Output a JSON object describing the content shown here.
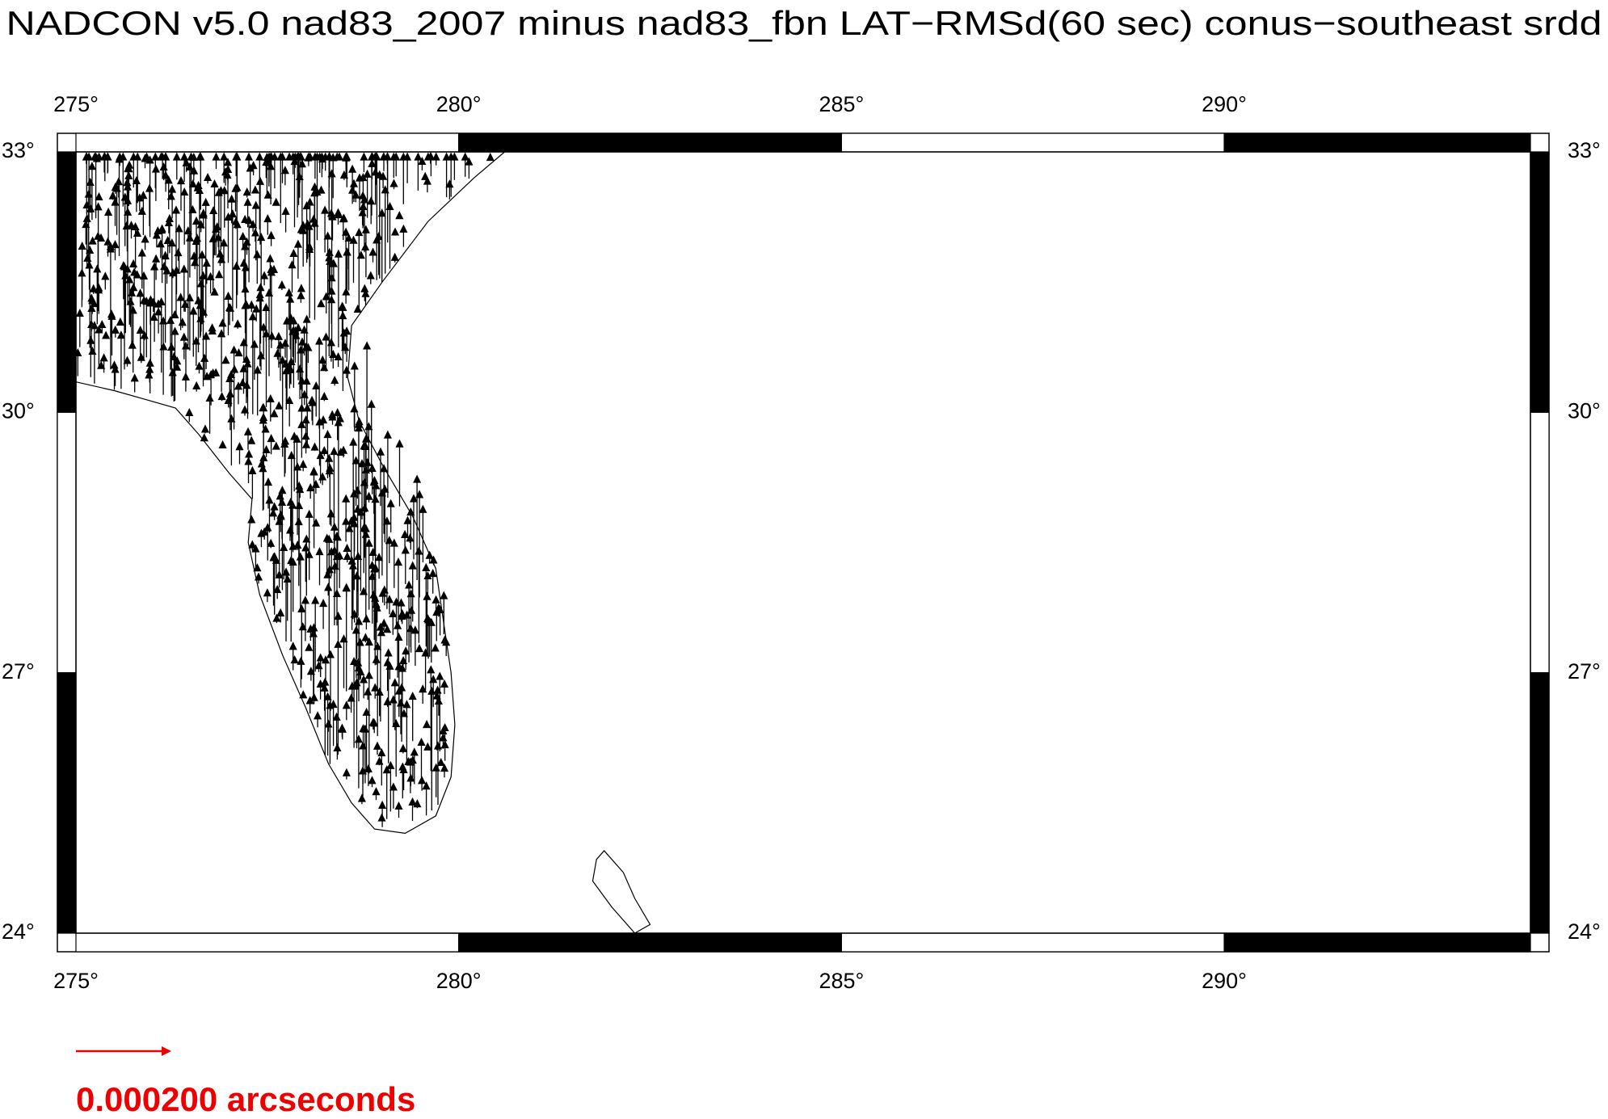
{
  "map": {
    "title": "NADCON v5.0 nad83_2007 minus nad83_fbn LAT−RMSd(60 sec) conus−southeast srdd",
    "lonlim": [
      275,
      294
    ],
    "latlim": [
      24,
      33
    ],
    "lon_ticks": [
      {
        "value": 275,
        "label": "275°"
      },
      {
        "value": 280,
        "label": "280°"
      },
      {
        "value": 285,
        "label": "285°"
      },
      {
        "value": 290,
        "label": "290°"
      }
    ],
    "lat_ticks": [
      {
        "value": 33,
        "label": "33°"
      },
      {
        "value": 30,
        "label": "30°"
      },
      {
        "value": 27,
        "label": "27°"
      },
      {
        "value": 24,
        "label": "24°"
      }
    ],
    "scale_label": "0.000200 arcseconds"
  }
}
